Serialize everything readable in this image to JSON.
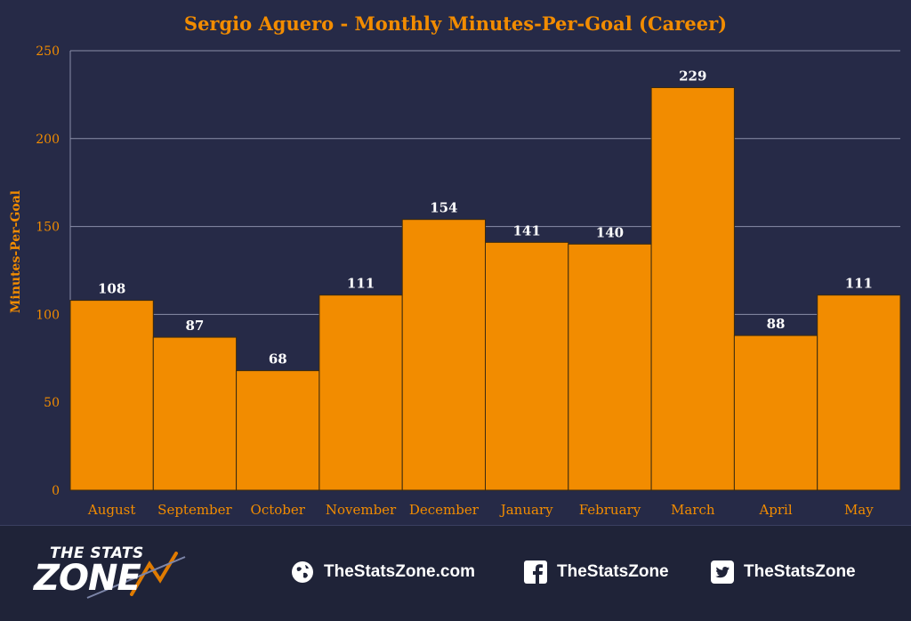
{
  "chart_data": {
    "type": "bar",
    "title": "Sergio Aguero - Monthly Minutes-Per-Goal (Career)",
    "xlabel": "",
    "ylabel": "Minutes-Per-Goal",
    "categories": [
      "August",
      "September",
      "October",
      "November",
      "December",
      "January",
      "February",
      "March",
      "April",
      "May"
    ],
    "values": [
      108,
      87,
      68,
      111,
      154,
      141,
      140,
      229,
      88,
      111
    ],
    "ylim": [
      0,
      250
    ],
    "yticks": [
      0,
      50,
      100,
      150,
      200,
      250
    ],
    "grid": true,
    "legend": "none",
    "colors": {
      "bar": "#f28c00",
      "bar_edge": "#3a2a10",
      "title": "#f28c00",
      "tick_label": "#f28c00",
      "data_label": "#ffffff",
      "grid": "#8a8ea8",
      "background": "#262a47"
    }
  },
  "footer": {
    "logo_top": "THE STATS",
    "logo_bottom": "ZONE",
    "website": "TheStatsZone.com",
    "facebook": "TheStatsZone",
    "twitter": "TheStatsZone",
    "icons": [
      "globe-icon",
      "facebook-icon",
      "twitter-icon"
    ]
  }
}
